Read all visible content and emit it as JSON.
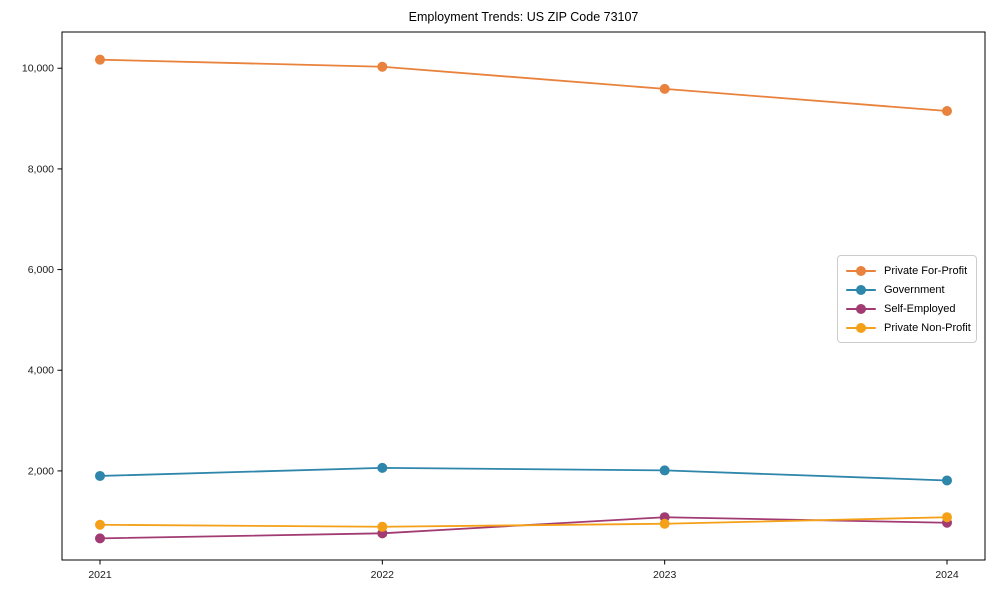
{
  "chart_data": {
    "type": "line",
    "title": "Employment Trends: US ZIP Code 73107",
    "xlabel": "",
    "ylabel": "",
    "categories": [
      "2021",
      "2022",
      "2023",
      "2024"
    ],
    "series": [
      {
        "name": "Private For-Profit",
        "color": "#E8823C",
        "values": [
          10170,
          10030,
          9590,
          9150
        ]
      },
      {
        "name": "Government",
        "color": "#2E86AB",
        "values": [
          1900,
          2060,
          2010,
          1810
        ]
      },
      {
        "name": "Self-Employed",
        "color": "#A23B72",
        "values": [
          660,
          760,
          1080,
          970
        ]
      },
      {
        "name": "Private Non-Profit",
        "color": "#F4A018",
        "values": [
          930,
          890,
          950,
          1080
        ]
      }
    ],
    "yticks": [
      2000,
      4000,
      6000,
      8000,
      10000
    ],
    "ytick_labels": [
      "2,000",
      "4,000",
      "6,000",
      "8,000",
      "10,000"
    ],
    "ylim": [
      230,
      10720
    ],
    "grid": false,
    "legend_position": "center-right",
    "frame": "box",
    "text_color": "#1a1a1a"
  }
}
